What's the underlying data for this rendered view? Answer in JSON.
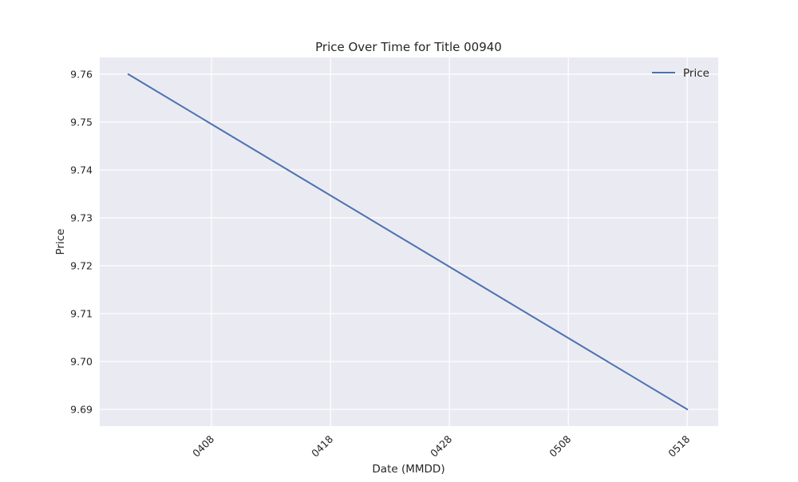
{
  "chart_data": {
    "type": "line",
    "title": "Price Over Time for Title 00940",
    "xlabel": "Date (MMDD)",
    "ylabel": "Price",
    "x_domain_days": [
      0,
      50
    ],
    "xlim": [
      -2.4,
      49.6
    ],
    "ylim": [
      9.6865,
      9.7635
    ],
    "x_ticks": [
      {
        "label": "0408",
        "day": 7
      },
      {
        "label": "0418",
        "day": 17
      },
      {
        "label": "0428",
        "day": 27
      },
      {
        "label": "0508",
        "day": 37
      },
      {
        "label": "0518",
        "day": 47
      }
    ],
    "y_ticks": [
      {
        "label": "9.69",
        "value": 9.69
      },
      {
        "label": "9.70",
        "value": 9.7
      },
      {
        "label": "9.71",
        "value": 9.71
      },
      {
        "label": "9.72",
        "value": 9.72
      },
      {
        "label": "9.73",
        "value": 9.73
      },
      {
        "label": "9.74",
        "value": 9.74
      },
      {
        "label": "9.75",
        "value": 9.75
      },
      {
        "label": "9.76",
        "value": 9.76
      }
    ],
    "series": [
      {
        "name": "Price",
        "color": "#4c72b0",
        "points": [
          {
            "label": "0401",
            "day": 0,
            "value": 9.76
          },
          {
            "label": "0518",
            "day": 47,
            "value": 9.69
          }
        ]
      }
    ],
    "legend": {
      "position": "top-right",
      "entries": [
        "Price"
      ]
    },
    "grid": true,
    "colors": {
      "background": "#eaeaf2",
      "grid": "#ffffff",
      "text": "#262626"
    }
  }
}
